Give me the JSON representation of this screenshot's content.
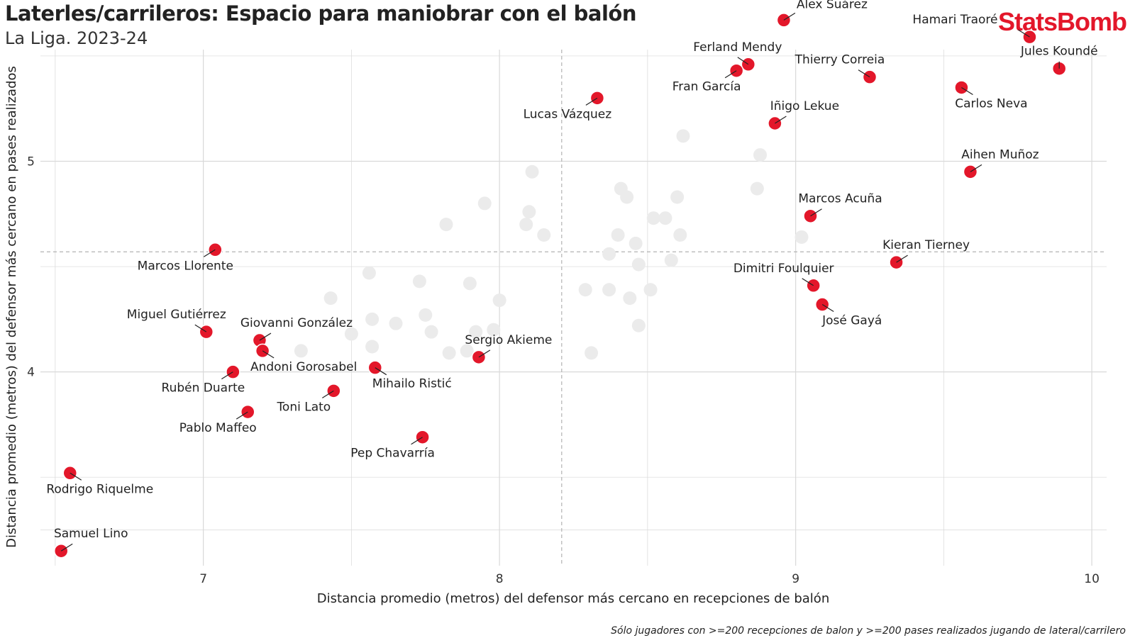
{
  "header": {
    "title": "Laterles/carrileros: Espacio para maniobrar con el balón",
    "subtitle": "La Liga. 2023-24",
    "logo_text": "StatsBomb"
  },
  "caption": "Sólo jugadores con >=200 recepciones de balon y >=200 pases realizados jugando de lateral/carrilero",
  "colors": {
    "highlight": "#e3172a",
    "background_point": "#ebebeb",
    "grid": "#d9d9d9",
    "reference_line": "#b3b3b3"
  },
  "chart_data": {
    "type": "scatter",
    "title": "Laterles/carrileros: Espacio para maniobrar con el balón",
    "subtitle": "La Liga. 2023-24",
    "xlabel": "Distancia promedio (metros) del defensor más cercano en recepciones de balón",
    "ylabel": "Distancia promedio (metros) del defensor más cercano en pases realizados",
    "xlim": [
      6.45,
      10.05
    ],
    "ylim": [
      3.08,
      5.53
    ],
    "x_ticks": [
      7,
      8,
      9,
      10
    ],
    "y_ticks": [
      4,
      5
    ],
    "grid": true,
    "reference_lines": {
      "x_mean": 8.21,
      "y_mean": 4.57
    },
    "highlighted": [
      {
        "name": "Álex Suárez",
        "x": 8.96,
        "y": 5.67
      },
      {
        "name": "Hamari Traoré",
        "x": 9.79,
        "y": 5.59
      },
      {
        "name": "Jules Koundé",
        "x": 9.89,
        "y": 5.44
      },
      {
        "name": "Ferland Mendy",
        "x": 8.84,
        "y": 5.46
      },
      {
        "name": "Fran García",
        "x": 8.8,
        "y": 5.43
      },
      {
        "name": "Thierry Correia",
        "x": 9.25,
        "y": 5.4
      },
      {
        "name": "Carlos Neva",
        "x": 9.56,
        "y": 5.35
      },
      {
        "name": "Lucas Vázquez",
        "x": 8.33,
        "y": 5.3
      },
      {
        "name": "Iñigo Lekue",
        "x": 8.93,
        "y": 5.18
      },
      {
        "name": "Aihen Muñoz",
        "x": 9.59,
        "y": 4.95
      },
      {
        "name": "Marcos Acuña",
        "x": 9.05,
        "y": 4.74
      },
      {
        "name": "Marcos Llorente",
        "x": 7.04,
        "y": 4.58
      },
      {
        "name": "Kieran Tierney",
        "x": 9.34,
        "y": 4.52
      },
      {
        "name": "Dimitri Foulquier",
        "x": 9.06,
        "y": 4.41
      },
      {
        "name": "José Gayá",
        "x": 9.09,
        "y": 4.32
      },
      {
        "name": "Miguel Gutiérrez",
        "x": 7.01,
        "y": 4.19
      },
      {
        "name": "Giovanni González",
        "x": 7.19,
        "y": 4.15
      },
      {
        "name": "Andoni Gorosabel",
        "x": 7.2,
        "y": 4.1
      },
      {
        "name": "Sergio Akieme",
        "x": 7.93,
        "y": 4.07
      },
      {
        "name": "Mihailo Ristić",
        "x": 7.58,
        "y": 4.02
      },
      {
        "name": "Rubén Duarte",
        "x": 7.1,
        "y": 4.0
      },
      {
        "name": "Toni Lato",
        "x": 7.44,
        "y": 3.91
      },
      {
        "name": "Pablo Maffeo",
        "x": 7.15,
        "y": 3.81
      },
      {
        "name": "Pep Chavarría",
        "x": 7.74,
        "y": 3.69
      },
      {
        "name": "Rodrigo Riquelme",
        "x": 6.55,
        "y": 3.52
      },
      {
        "name": "Samuel Lino",
        "x": 6.52,
        "y": 3.15
      }
    ],
    "others": [
      [
        8.62,
        5.12
      ],
      [
        8.88,
        5.03
      ],
      [
        8.11,
        4.95
      ],
      [
        8.41,
        4.87
      ],
      [
        8.87,
        4.87
      ],
      [
        8.43,
        4.83
      ],
      [
        8.6,
        4.83
      ],
      [
        7.95,
        4.8
      ],
      [
        8.1,
        4.76
      ],
      [
        8.52,
        4.73
      ],
      [
        8.56,
        4.73
      ],
      [
        7.82,
        4.7
      ],
      [
        8.09,
        4.7
      ],
      [
        8.15,
        4.65
      ],
      [
        8.4,
        4.65
      ],
      [
        8.61,
        4.65
      ],
      [
        9.02,
        4.64
      ],
      [
        8.46,
        4.61
      ],
      [
        8.37,
        4.56
      ],
      [
        8.58,
        4.53
      ],
      [
        8.47,
        4.51
      ],
      [
        7.56,
        4.47
      ],
      [
        7.73,
        4.43
      ],
      [
        7.9,
        4.42
      ],
      [
        8.29,
        4.39
      ],
      [
        8.37,
        4.39
      ],
      [
        8.51,
        4.39
      ],
      [
        7.43,
        4.35
      ],
      [
        8.44,
        4.35
      ],
      [
        8.0,
        4.34
      ],
      [
        7.75,
        4.27
      ],
      [
        7.57,
        4.25
      ],
      [
        7.65,
        4.23
      ],
      [
        8.47,
        4.22
      ],
      [
        7.92,
        4.19
      ],
      [
        7.98,
        4.2
      ],
      [
        7.77,
        4.19
      ],
      [
        7.5,
        4.18
      ],
      [
        7.57,
        4.12
      ],
      [
        7.33,
        4.1
      ],
      [
        7.83,
        4.09
      ],
      [
        8.31,
        4.09
      ],
      [
        7.89,
        4.1
      ]
    ]
  }
}
